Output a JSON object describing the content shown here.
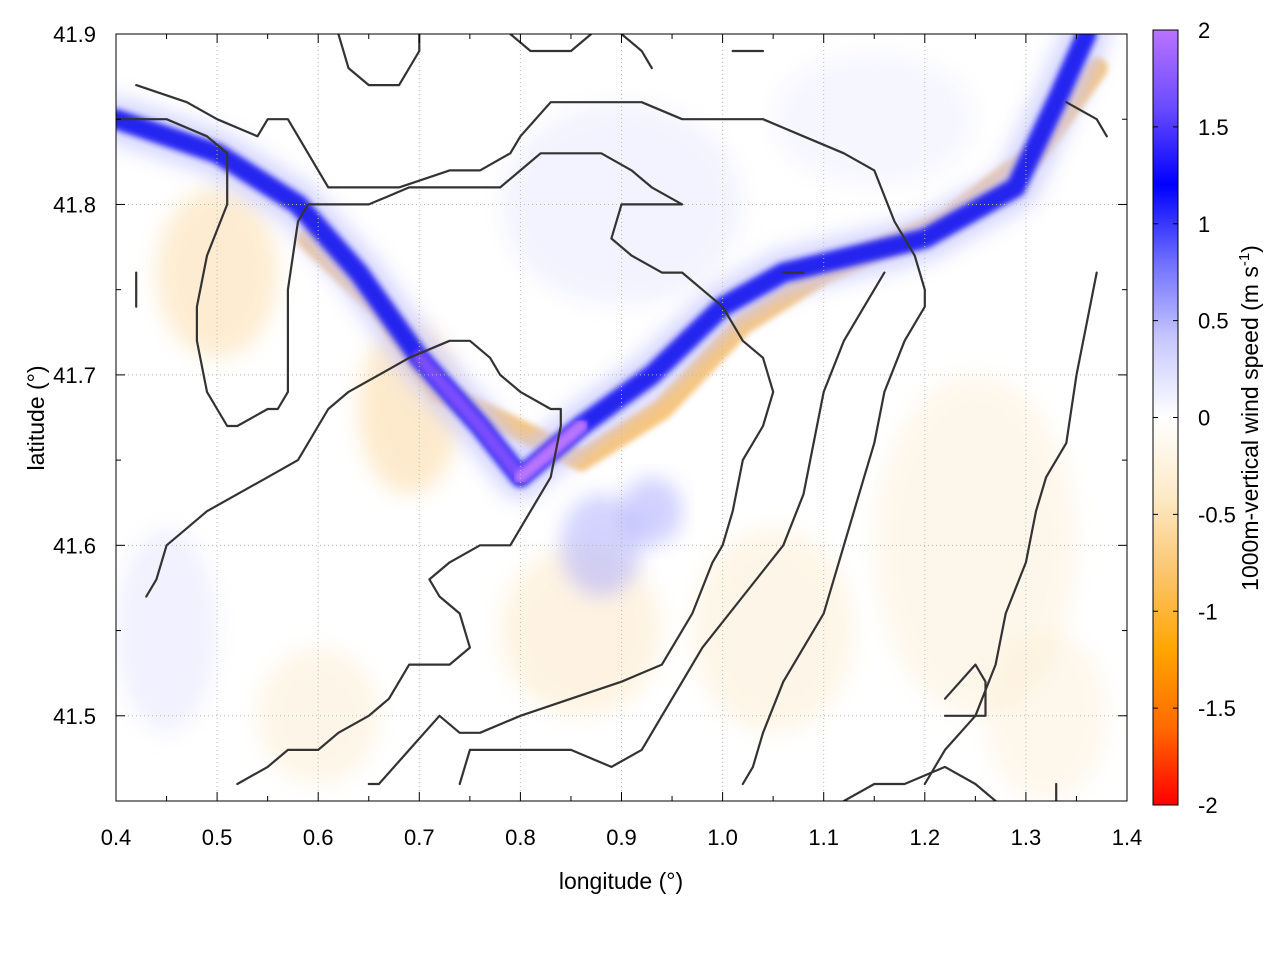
{
  "chart_data": {
    "type": "heatmap",
    "xlabel": "longitude (°)",
    "ylabel": "latitude (°)",
    "colorbar_label": "1000m-vertical wind speed (m s",
    "colorbar_label_sup": "-1",
    "colorbar_label_end": ")",
    "xlim": [
      0.4,
      1.4
    ],
    "ylim": [
      41.45,
      41.9
    ],
    "x_ticks": [
      "0.4",
      "0.5",
      "0.6",
      "0.7",
      "0.8",
      "0.9",
      "1.0",
      "1.1",
      "1.2",
      "1.3",
      "1.4"
    ],
    "y_ticks": [
      "41.5",
      "41.6",
      "41.7",
      "41.8",
      "41.9"
    ],
    "color_ticks": [
      "-2",
      "-1.5",
      "-1",
      "-0.5",
      "0",
      "0.5",
      "1",
      "1.5",
      "2"
    ],
    "color_range": [
      -2,
      2
    ],
    "grid": true,
    "colormap": {
      "negative": [
        "#ffffff",
        "#fdebc8",
        "#fbc56e",
        "#ffa500",
        "#ff6a00",
        "#ff0000"
      ],
      "positive": [
        "#ffffff",
        "#c8c8ff",
        "#6f6fff",
        "#0000ff",
        "#6a4bff",
        "#b973ff"
      ]
    },
    "updraft_band_lon_lat": [
      [
        0.4,
        41.85
      ],
      [
        0.5,
        41.83
      ],
      [
        0.58,
        41.8
      ],
      [
        0.64,
        41.76
      ],
      [
        0.7,
        41.71
      ],
      [
        0.76,
        41.67
      ],
      [
        0.8,
        41.64
      ],
      [
        0.86,
        41.67
      ],
      [
        0.93,
        41.7
      ],
      [
        1.0,
        41.74
      ],
      [
        1.06,
        41.76
      ],
      [
        1.2,
        41.78
      ],
      [
        1.29,
        41.81
      ],
      [
        1.33,
        41.86
      ],
      [
        1.36,
        41.9
      ]
    ],
    "downdraft_band_lon_lat": [
      [
        0.59,
        41.78
      ],
      [
        0.66,
        41.74
      ],
      [
        0.72,
        41.69
      ],
      [
        0.86,
        41.65
      ],
      [
        0.94,
        41.68
      ],
      [
        1.02,
        41.73
      ],
      [
        1.1,
        41.76
      ],
      [
        1.22,
        41.79
      ],
      [
        1.31,
        41.83
      ],
      [
        1.37,
        41.88
      ]
    ],
    "contours_lon_lat": [
      [
        [
          0.42,
          41.87
        ],
        [
          0.47,
          41.86
        ],
        [
          0.5,
          41.85
        ],
        [
          0.54,
          41.84
        ],
        [
          0.55,
          41.85
        ],
        [
          0.57,
          41.85
        ],
        [
          0.6,
          41.82
        ],
        [
          0.61,
          41.81
        ],
        [
          0.63,
          41.81
        ],
        [
          0.66,
          41.81
        ],
        [
          0.68,
          41.81
        ],
        [
          0.73,
          41.82
        ],
        [
          0.76,
          41.82
        ],
        [
          0.79,
          41.83
        ],
        [
          0.8,
          41.84
        ],
        [
          0.83,
          41.86
        ],
        [
          0.88,
          41.86
        ],
        [
          0.92,
          41.86
        ],
        [
          0.96,
          41.85
        ],
        [
          1.04,
          41.85
        ],
        [
          1.08,
          41.84
        ],
        [
          1.12,
          41.83
        ],
        [
          1.15,
          41.82
        ],
        [
          1.17,
          41.79
        ],
        [
          1.19,
          41.77
        ],
        [
          1.2,
          41.75
        ],
        [
          1.2,
          41.74
        ],
        [
          1.18,
          41.72
        ],
        [
          1.16,
          41.69
        ],
        [
          1.15,
          41.66
        ],
        [
          1.14,
          41.64
        ],
        [
          1.12,
          41.6
        ],
        [
          1.1,
          41.56
        ],
        [
          1.06,
          41.52
        ],
        [
          1.04,
          41.49
        ],
        [
          1.03,
          41.47
        ],
        [
          1.02,
          41.46
        ]
      ],
      [
        [
          0.4,
          41.85
        ],
        [
          0.45,
          41.85
        ],
        [
          0.49,
          41.84
        ],
        [
          0.51,
          41.83
        ],
        [
          0.51,
          41.81
        ],
        [
          0.51,
          41.8
        ],
        [
          0.49,
          41.77
        ],
        [
          0.48,
          41.74
        ],
        [
          0.48,
          41.72
        ],
        [
          0.49,
          41.69
        ],
        [
          0.5,
          41.68
        ],
        [
          0.51,
          41.67
        ],
        [
          0.52,
          41.67
        ],
        [
          0.55,
          41.68
        ],
        [
          0.56,
          41.68
        ],
        [
          0.57,
          41.69
        ],
        [
          0.57,
          41.72
        ],
        [
          0.57,
          41.75
        ],
        [
          0.58,
          41.79
        ],
        [
          0.59,
          41.8
        ],
        [
          0.62,
          41.8
        ],
        [
          0.65,
          41.8
        ],
        [
          0.69,
          41.81
        ],
        [
          0.71,
          41.81
        ],
        [
          0.78,
          41.81
        ],
        [
          0.8,
          41.82
        ],
        [
          0.82,
          41.83
        ],
        [
          0.84,
          41.83
        ],
        [
          0.88,
          41.83
        ],
        [
          0.91,
          41.82
        ],
        [
          0.93,
          41.81
        ],
        [
          0.96,
          41.8
        ],
        [
          0.95,
          41.8
        ],
        [
          0.93,
          41.8
        ],
        [
          0.9,
          41.8
        ],
        [
          0.89,
          41.78
        ],
        [
          0.91,
          41.77
        ],
        [
          0.94,
          41.76
        ],
        [
          0.96,
          41.76
        ],
        [
          0.98,
          41.75
        ],
        [
          1.0,
          41.74
        ],
        [
          1.02,
          41.72
        ],
        [
          1.04,
          41.71
        ],
        [
          1.05,
          41.69
        ],
        [
          1.04,
          41.67
        ],
        [
          1.02,
          41.65
        ],
        [
          1.01,
          41.62
        ],
        [
          1.0,
          41.6
        ],
        [
          0.99,
          41.59
        ],
        [
          0.97,
          41.56
        ],
        [
          0.94,
          41.53
        ],
        [
          0.9,
          41.52
        ],
        [
          0.85,
          41.51
        ],
        [
          0.8,
          41.5
        ],
        [
          0.76,
          41.49
        ],
        [
          0.74,
          41.49
        ],
        [
          0.72,
          41.5
        ],
        [
          0.69,
          41.48
        ],
        [
          0.66,
          41.46
        ],
        [
          0.65,
          41.46
        ]
      ],
      [
        [
          0.43,
          41.57
        ],
        [
          0.44,
          41.58
        ],
        [
          0.45,
          41.6
        ],
        [
          0.47,
          41.61
        ],
        [
          0.49,
          41.62
        ],
        [
          0.52,
          41.63
        ],
        [
          0.55,
          41.64
        ],
        [
          0.58,
          41.65
        ],
        [
          0.6,
          41.67
        ],
        [
          0.61,
          41.68
        ],
        [
          0.63,
          41.69
        ],
        [
          0.66,
          41.7
        ],
        [
          0.69,
          41.71
        ],
        [
          0.73,
          41.72
        ],
        [
          0.75,
          41.72
        ],
        [
          0.77,
          41.71
        ],
        [
          0.78,
          41.7
        ],
        [
          0.8,
          41.69
        ],
        [
          0.83,
          41.68
        ],
        [
          0.84,
          41.68
        ],
        [
          0.84,
          41.67
        ],
        [
          0.83,
          41.64
        ],
        [
          0.81,
          41.62
        ],
        [
          0.79,
          41.6
        ],
        [
          0.76,
          41.6
        ],
        [
          0.73,
          41.59
        ],
        [
          0.71,
          41.58
        ],
        [
          0.72,
          41.57
        ],
        [
          0.74,
          41.56
        ],
        [
          0.75,
          41.54
        ],
        [
          0.73,
          41.53
        ],
        [
          0.69,
          41.53
        ],
        [
          0.67,
          41.51
        ],
        [
          0.65,
          41.5
        ],
        [
          0.62,
          41.49
        ],
        [
          0.6,
          41.48
        ],
        [
          0.57,
          41.48
        ],
        [
          0.55,
          41.47
        ],
        [
          0.52,
          41.46
        ]
      ],
      [
        [
          0.74,
          41.46
        ],
        [
          0.75,
          41.48
        ],
        [
          0.79,
          41.48
        ],
        [
          0.85,
          41.48
        ],
        [
          0.89,
          41.47
        ],
        [
          0.92,
          41.48
        ],
        [
          0.94,
          41.5
        ],
        [
          0.96,
          41.52
        ],
        [
          0.98,
          41.54
        ],
        [
          1.02,
          41.57
        ],
        [
          1.06,
          41.6
        ],
        [
          1.08,
          41.63
        ],
        [
          1.09,
          41.66
        ],
        [
          1.1,
          41.69
        ],
        [
          1.12,
          41.72
        ],
        [
          1.14,
          41.74
        ],
        [
          1.16,
          41.76
        ]
      ],
      [
        [
          1.12,
          41.45
        ],
        [
          1.15,
          41.46
        ],
        [
          1.18,
          41.46
        ],
        [
          1.22,
          41.47
        ],
        [
          1.25,
          41.46
        ],
        [
          1.27,
          41.45
        ]
      ],
      [
        [
          1.22,
          41.5
        ],
        [
          1.26,
          41.5
        ],
        [
          1.26,
          41.52
        ],
        [
          1.25,
          41.53
        ],
        [
          1.22,
          41.51
        ]
      ],
      [
        [
          1.2,
          41.46
        ],
        [
          1.22,
          41.48
        ],
        [
          1.25,
          41.5
        ],
        [
          1.27,
          41.53
        ],
        [
          1.28,
          41.56
        ],
        [
          1.3,
          41.59
        ],
        [
          1.31,
          41.62
        ],
        [
          1.32,
          41.64
        ],
        [
          1.34,
          41.66
        ],
        [
          1.35,
          41.7
        ],
        [
          1.36,
          41.73
        ],
        [
          1.37,
          41.76
        ]
      ],
      [
        [
          0.62,
          41.9
        ],
        [
          0.63,
          41.88
        ],
        [
          0.65,
          41.87
        ],
        [
          0.68,
          41.87
        ],
        [
          0.7,
          41.89
        ],
        [
          0.7,
          41.9
        ]
      ],
      [
        [
          0.79,
          41.9
        ],
        [
          0.81,
          41.89
        ],
        [
          0.85,
          41.89
        ],
        [
          0.87,
          41.9
        ]
      ],
      [
        [
          0.9,
          41.9
        ],
        [
          0.92,
          41.89
        ],
        [
          0.93,
          41.88
        ]
      ],
      [
        [
          1.01,
          41.89
        ],
        [
          1.04,
          41.89
        ]
      ],
      [
        [
          1.34,
          41.86
        ],
        [
          1.37,
          41.85
        ],
        [
          1.38,
          41.84
        ]
      ],
      [
        [
          0.42,
          41.76
        ],
        [
          0.42,
          41.74
        ]
      ],
      [
        [
          1.06,
          41.76
        ],
        [
          1.07,
          41.76
        ],
        [
          1.08,
          41.76
        ],
        [
          1.06,
          41.76
        ]
      ],
      [
        [
          1.33,
          41.46
        ],
        [
          1.33,
          41.45
        ]
      ]
    ]
  }
}
